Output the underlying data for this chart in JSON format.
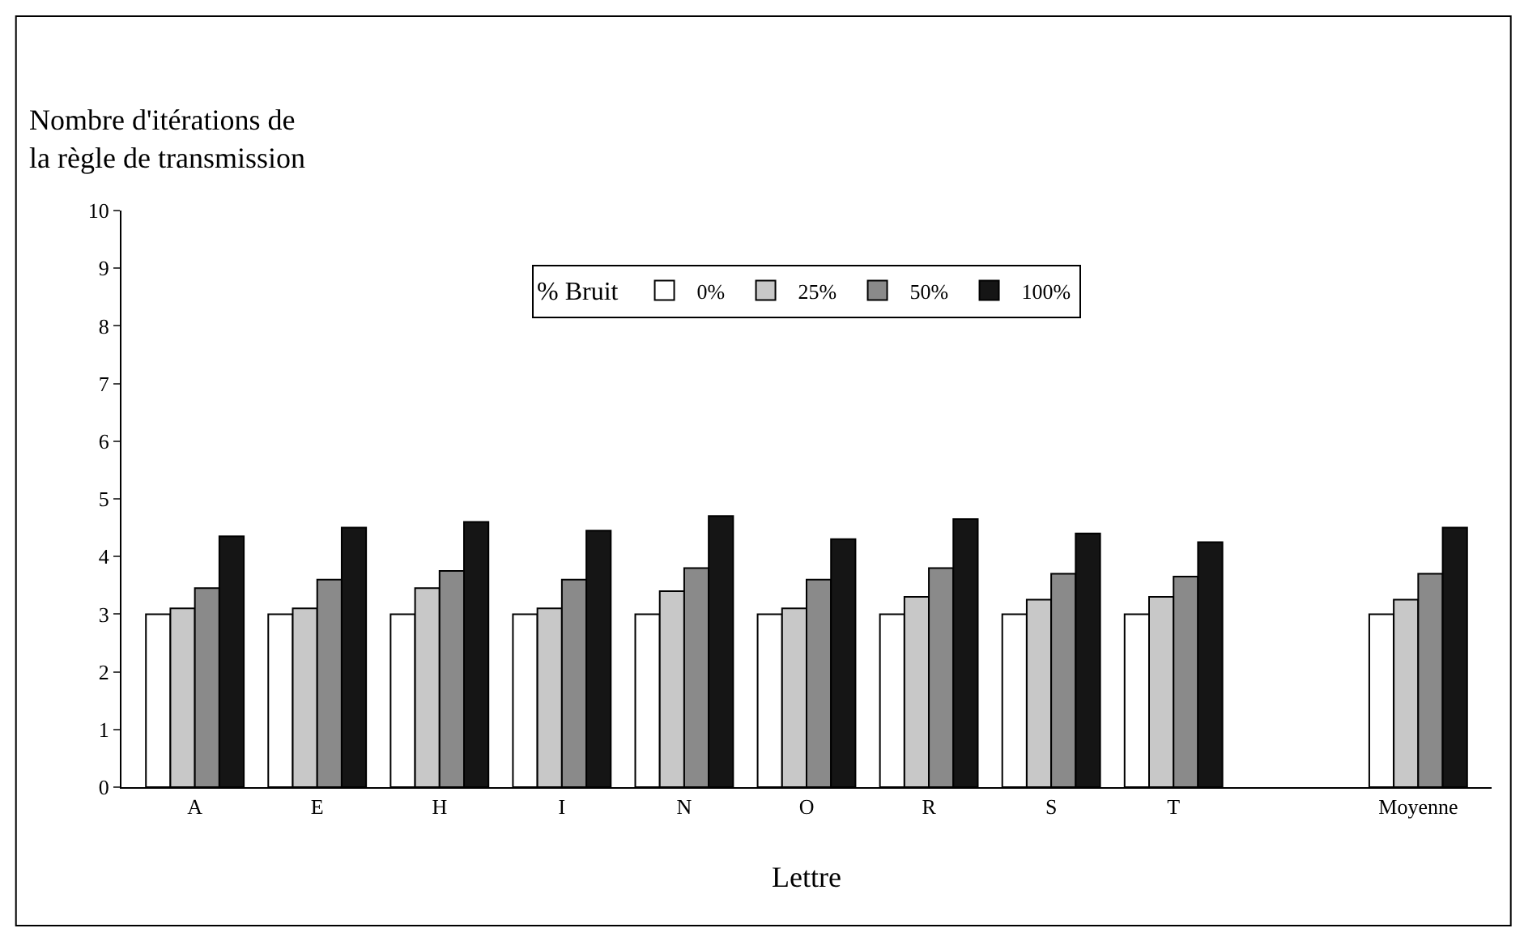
{
  "chart_data": {
    "type": "bar",
    "ylabel": "Nombre d'itérations de\nla règle de transmission",
    "xlabel": "Lettre",
    "legend_title": "% Bruit",
    "legend": "top",
    "categories": [
      "A",
      "E",
      "H",
      "I",
      "N",
      "O",
      "R",
      "S",
      "T",
      null,
      "Moyenne"
    ],
    "series": [
      {
        "name": "0%",
        "color": "#ffffff",
        "values": [
          3.0,
          3.0,
          3.0,
          3.0,
          3.0,
          3.0,
          3.0,
          3.0,
          3.0,
          null,
          3.0
        ]
      },
      {
        "name": "25%",
        "color": "#c8c8c8",
        "values": [
          3.1,
          3.1,
          3.45,
          3.1,
          3.4,
          3.1,
          3.3,
          3.25,
          3.3,
          null,
          3.25
        ]
      },
      {
        "name": "50%",
        "color": "#8a8a8a",
        "values": [
          3.45,
          3.6,
          3.75,
          3.6,
          3.8,
          3.6,
          3.8,
          3.7,
          3.65,
          null,
          3.7
        ]
      },
      {
        "name": "100%",
        "color": "#151515",
        "values": [
          4.35,
          4.5,
          4.6,
          4.45,
          4.7,
          4.3,
          4.65,
          4.4,
          4.25,
          null,
          4.5
        ]
      }
    ],
    "ylim": [
      0,
      10
    ],
    "yticks": [
      0,
      1,
      2,
      3,
      4,
      5,
      6,
      7,
      8,
      9,
      10
    ]
  }
}
